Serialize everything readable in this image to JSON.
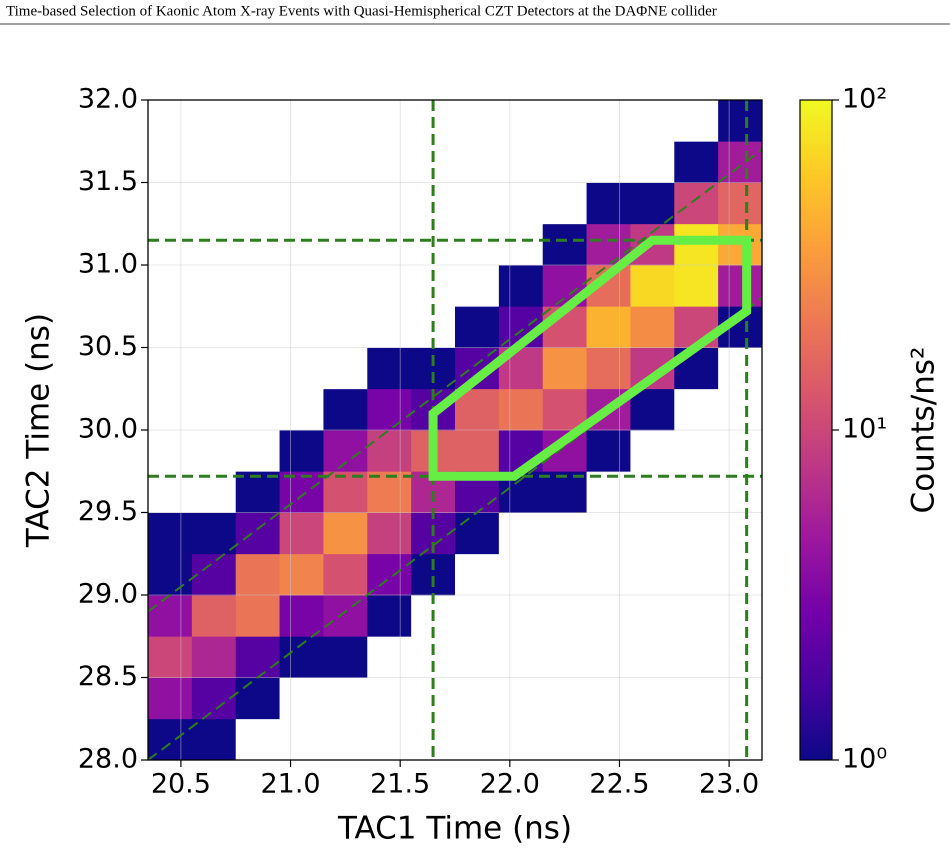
{
  "header": {
    "title": "Time-based Selection of Kaonic Atom X-ray Events with Quasi-Hemispherical CZT Detectors at the DAΦNE collider"
  },
  "chart_data": {
    "type": "hist2d",
    "xlabel": "TAC1 Time (ns)",
    "ylabel": "TAC2 Time (ns)",
    "colorbar_label": "Counts/ns²",
    "xlim": [
      20.35,
      23.15
    ],
    "ylim": [
      28.0,
      32.0
    ],
    "xticks": [
      20.5,
      {
        "value": 21,
        "label": "21.0"
      },
      21.5,
      {
        "value": 22,
        "label": "22.0"
      },
      22.5,
      {
        "value": 23,
        "label": "23.0"
      }
    ],
    "yticks": [
      {
        "value": 28,
        "label": "28.0"
      },
      28.5,
      {
        "value": 29,
        "label": "29.0"
      },
      29.5,
      {
        "value": 30,
        "label": "30.0"
      },
      30.5,
      {
        "value": 31,
        "label": "31.0"
      },
      31.5,
      {
        "value": 32,
        "label": "32.0"
      }
    ],
    "grid": true,
    "xbins": [
      20.35,
      20.55,
      20.75,
      20.95,
      21.15,
      21.35,
      21.55,
      21.75,
      21.95,
      22.15,
      22.35,
      22.55,
      22.75,
      22.95,
      23.15
    ],
    "ybins": [
      28,
      28.25,
      28.5,
      28.75,
      29,
      29.25,
      29.5,
      29.75,
      30,
      30.25,
      30.5,
      30.75,
      31,
      31.25,
      31.5,
      31.75,
      32
    ],
    "counts": [
      [
        1,
        1,
        0,
        0,
        0,
        0,
        0,
        0,
        0,
        0,
        0,
        0,
        0,
        0
      ],
      [
        4,
        2,
        1,
        0,
        0,
        0,
        0,
        0,
        0,
        0,
        0,
        0,
        0,
        0
      ],
      [
        10,
        6,
        2,
        1,
        1,
        0,
        0,
        0,
        0,
        0,
        0,
        0,
        0,
        0
      ],
      [
        4,
        15,
        20,
        3,
        4,
        1,
        0,
        0,
        0,
        0,
        0,
        0,
        0,
        0
      ],
      [
        1,
        2,
        20,
        25,
        12,
        3,
        1,
        0,
        0,
        0,
        0,
        0,
        0,
        0
      ],
      [
        1,
        1,
        2,
        10,
        30,
        9,
        2,
        1,
        0,
        0,
        0,
        0,
        0,
        0
      ],
      [
        0,
        0,
        1,
        3,
        12,
        22,
        6,
        2,
        1,
        1,
        0,
        0,
        0,
        0
      ],
      [
        0,
        0,
        0,
        1,
        4,
        9,
        15,
        15,
        2,
        4,
        1,
        0,
        0,
        0
      ],
      [
        0,
        0,
        0,
        0,
        1,
        3,
        2,
        15,
        20,
        12,
        5,
        1,
        0,
        0
      ],
      [
        0,
        0,
        0,
        0,
        0,
        1,
        1,
        2,
        8,
        30,
        18,
        8,
        1,
        0
      ],
      [
        0,
        0,
        0,
        0,
        0,
        0,
        0,
        1,
        2,
        12,
        45,
        28,
        10,
        1
      ],
      [
        0,
        0,
        0,
        0,
        0,
        0,
        0,
        0,
        1,
        4,
        18,
        70,
        80,
        5
      ],
      [
        0,
        0,
        0,
        0,
        0,
        0,
        0,
        0,
        0,
        1,
        5,
        8,
        80,
        40
      ],
      [
        0,
        0,
        0,
        0,
        0,
        0,
        0,
        0,
        0,
        0,
        1,
        1,
        10,
        16
      ],
      [
        0,
        0,
        0,
        0,
        0,
        0,
        0,
        0,
        0,
        0,
        0,
        0,
        1,
        5
      ],
      [
        0,
        0,
        0,
        0,
        0,
        0,
        0,
        0,
        0,
        0,
        0,
        0,
        0,
        1
      ]
    ],
    "color_scale": "log",
    "clim": [
      1,
      100
    ],
    "cticks": [
      {
        "value": 1,
        "label": "10⁰"
      },
      {
        "value": 10,
        "label": "10¹"
      },
      {
        "value": 100,
        "label": "10²"
      }
    ],
    "colormap": [
      "#0d0887",
      "#46039f",
      "#7201a8",
      "#9c179e",
      "#bd3786",
      "#d8576b",
      "#ed7953",
      "#fb9f3a",
      "#fdca26",
      "#f0f921"
    ],
    "cut_color": "#2e7d1e",
    "vlines": [
      21.65,
      23.08
    ],
    "hlines": [
      29.72,
      31.15
    ],
    "diagonal_intercepts": [
      8.55,
      7.65
    ],
    "selection_color": "#66ee44",
    "selection_x": [
      21.65,
      22.02,
      23.08,
      23.08,
      22.65,
      21.65
    ],
    "selection_y": [
      29.72,
      29.72,
      30.72,
      31.15,
      31.15,
      30.1
    ]
  }
}
